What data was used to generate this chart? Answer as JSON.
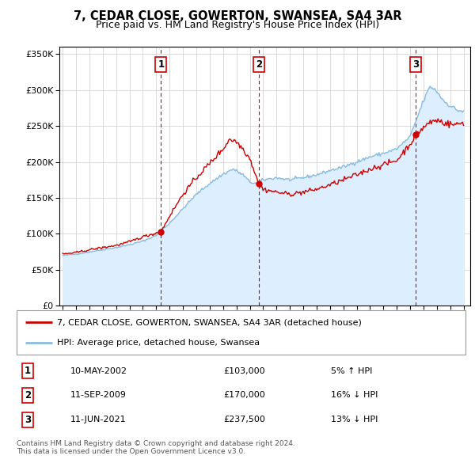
{
  "title": "7, CEDAR CLOSE, GOWERTON, SWANSEA, SA4 3AR",
  "subtitle": "Price paid vs. HM Land Registry's House Price Index (HPI)",
  "footer1": "Contains HM Land Registry data © Crown copyright and database right 2024.",
  "footer2": "This data is licensed under the Open Government Licence v3.0.",
  "legend_line1": "7, CEDAR CLOSE, GOWERTON, SWANSEA, SA4 3AR (detached house)",
  "legend_line2": "HPI: Average price, detached house, Swansea",
  "sale_color": "#cc0000",
  "hpi_color": "#88bbdd",
  "hpi_fill_color": "#ddeeff",
  "vline_color": "#cc0000",
  "ylim": [
    0,
    360000
  ],
  "yticks": [
    0,
    50000,
    100000,
    150000,
    200000,
    250000,
    300000,
    350000
  ],
  "sales": [
    {
      "date_num": 2002.36,
      "price": 103000,
      "label": "1",
      "date_str": "10-MAY-2002",
      "pct": "5%",
      "dir": "↑",
      "rel": "HPI"
    },
    {
      "date_num": 2009.69,
      "price": 170000,
      "label": "2",
      "date_str": "11-SEP-2009",
      "pct": "16%",
      "dir": "↓",
      "rel": "HPI"
    },
    {
      "date_num": 2021.44,
      "price": 237500,
      "label": "3",
      "date_str": "11-JUN-2021",
      "pct": "13%",
      "dir": "↓",
      "rel": "HPI"
    }
  ],
  "xlim_start": 1994.75,
  "xlim_end": 2025.5,
  "hpi_anchors_x": [
    1995.0,
    1996.0,
    1997.0,
    1998.0,
    1999.0,
    2000.0,
    2001.0,
    2002.0,
    2003.0,
    2004.0,
    2005.0,
    2006.0,
    2007.0,
    2007.75,
    2008.5,
    2009.0,
    2009.5,
    2010.0,
    2011.0,
    2012.0,
    2013.0,
    2014.0,
    2015.0,
    2016.0,
    2017.0,
    2018.0,
    2019.0,
    2020.0,
    2021.0,
    2021.5,
    2022.0,
    2022.5,
    2023.0,
    2023.5,
    2024.0,
    2024.5,
    2025.0
  ],
  "hpi_anchors_y": [
    70000,
    72000,
    75000,
    78000,
    81000,
    85000,
    90000,
    98000,
    115000,
    135000,
    155000,
    170000,
    183000,
    190000,
    182000,
    172000,
    170000,
    175000,
    178000,
    175000,
    178000,
    182000,
    188000,
    193000,
    200000,
    207000,
    212000,
    218000,
    235000,
    260000,
    285000,
    305000,
    298000,
    285000,
    278000,
    272000,
    270000
  ],
  "sale_anchors_x": [
    1995.0,
    1996.0,
    1997.0,
    1998.0,
    1999.0,
    2000.0,
    2001.0,
    2002.36,
    2003.0,
    2004.0,
    2005.0,
    2006.0,
    2007.0,
    2007.5,
    2008.0,
    2008.5,
    2009.0,
    2009.69,
    2010.0,
    2011.0,
    2012.0,
    2013.0,
    2014.0,
    2015.0,
    2016.0,
    2017.0,
    2018.0,
    2019.0,
    2020.0,
    2021.0,
    2021.44,
    2022.0,
    2022.5,
    2023.0,
    2023.5,
    2024.0,
    2024.5,
    2025.0
  ],
  "sale_anchors_y": [
    72000,
    74000,
    78000,
    81000,
    84000,
    89000,
    96000,
    103000,
    125000,
    155000,
    178000,
    198000,
    218000,
    232000,
    228000,
    218000,
    205000,
    170000,
    162000,
    158000,
    155000,
    158000,
    162000,
    168000,
    175000,
    182000,
    190000,
    196000,
    202000,
    225000,
    237500,
    248000,
    255000,
    258000,
    255000,
    252000,
    252000,
    255000
  ]
}
